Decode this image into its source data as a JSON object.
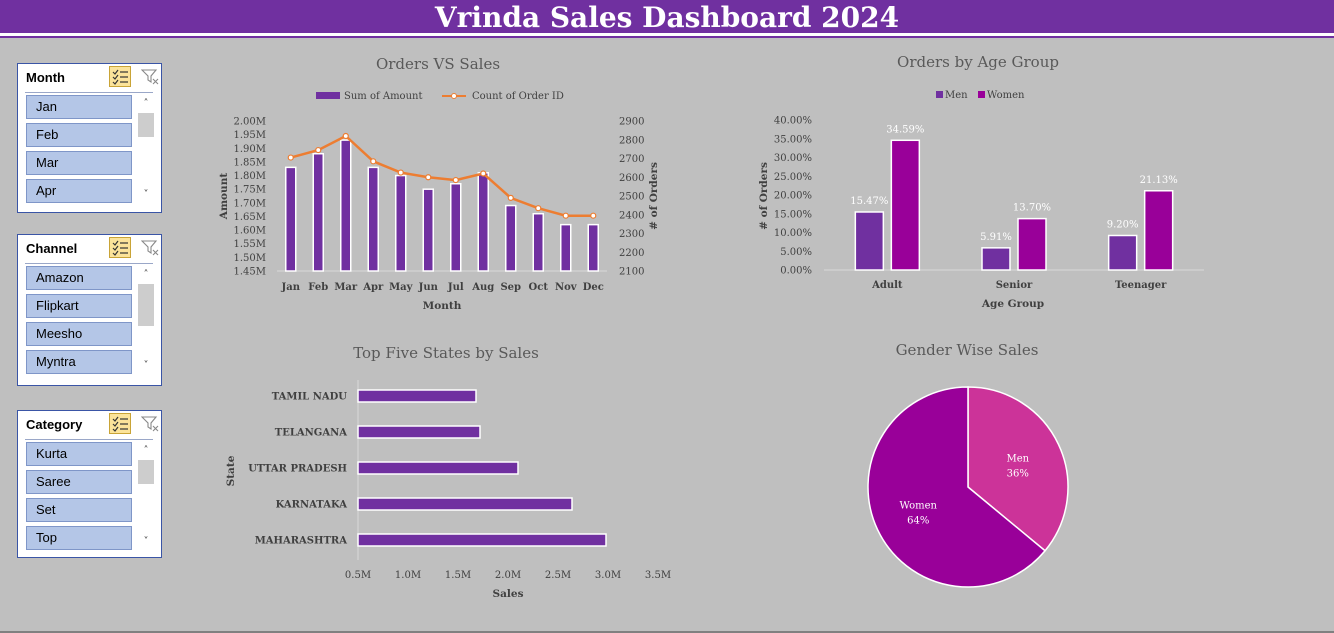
{
  "title": "Vrinda Sales Dashboard 2024",
  "slicers": [
    {
      "title": "Month",
      "items": [
        "Jan",
        "Feb",
        "Mar",
        "Apr"
      ]
    },
    {
      "title": "Channel",
      "items": [
        "Amazon",
        "Flipkart",
        "Meesho",
        "Myntra"
      ]
    },
    {
      "title": "Category",
      "items": [
        "Kurta",
        "Saree",
        "Set",
        "Top"
      ]
    }
  ],
  "chart_data": [
    {
      "type": "bar+line",
      "title": "Orders VS Sales",
      "xlabel": "Month",
      "ylabel": "Amount",
      "y2label": "# of Orders",
      "categories": [
        "Jan",
        "Feb",
        "Mar",
        "Apr",
        "May",
        "Jun",
        "Jul",
        "Aug",
        "Sep",
        "Oct",
        "Nov",
        "Dec"
      ],
      "series": [
        {
          "name": "Sum of Amount",
          "kind": "bar",
          "color": "#7030a0",
          "values": [
            1.83,
            1.88,
            1.93,
            1.83,
            1.8,
            1.75,
            1.77,
            1.81,
            1.69,
            1.66,
            1.62,
            1.62
          ]
        },
        {
          "name": "Count of Order ID",
          "kind": "line",
          "axis": "secondary",
          "color": "#ed7d31",
          "values": [
            2705,
            2745,
            2820,
            2685,
            2625,
            2600,
            2585,
            2620,
            2490,
            2435,
            2395,
            2395
          ]
        }
      ],
      "ylim": [
        1.45,
        2.0
      ],
      "yticks": [
        "1.45M",
        "1.50M",
        "1.55M",
        "1.60M",
        "1.65M",
        "1.70M",
        "1.75M",
        "1.80M",
        "1.85M",
        "1.90M",
        "1.95M",
        "2.00M"
      ],
      "y2lim": [
        2100,
        2900
      ],
      "y2ticks": [
        "2100",
        "2200",
        "2300",
        "2400",
        "2500",
        "2600",
        "2700",
        "2800",
        "2900"
      ],
      "legend": "top"
    },
    {
      "type": "bar",
      "title": "Orders by Age Group",
      "xlabel": "Age Group",
      "ylabel": "# of Orders",
      "categories": [
        "Adult",
        "Senior",
        "Teenager"
      ],
      "series": [
        {
          "name": "Men",
          "color": "#7030a0",
          "values": [
            15.47,
            5.91,
            9.2
          ],
          "labels": [
            "15.47%",
            "5.91%",
            "9.20%"
          ]
        },
        {
          "name": "Women",
          "color": "#990099",
          "values": [
            34.59,
            13.7,
            21.13
          ],
          "labels": [
            "34.59%",
            "13.70%",
            "21.13%"
          ]
        }
      ],
      "ylim": [
        0,
        40
      ],
      "yticks": [
        "0.00%",
        "5.00%",
        "10.00%",
        "15.00%",
        "20.00%",
        "25.00%",
        "30.00%",
        "35.00%",
        "40.00%"
      ],
      "legend": "top"
    },
    {
      "type": "bar",
      "orientation": "horizontal",
      "title": "Top Five States by Sales",
      "xlabel": "Sales",
      "ylabel": "State",
      "categories": [
        "TAMIL NADU",
        "TELANGANA",
        "UTTAR PRADESH",
        "KARNATAKA",
        "MAHARASHTRA"
      ],
      "values": [
        1.68,
        1.72,
        2.1,
        2.64,
        2.98
      ],
      "color": "#7030a0",
      "xlim": [
        0.5,
        3.5
      ],
      "xticks": [
        "0.5M",
        "1.0M",
        "1.5M",
        "2.0M",
        "2.5M",
        "3.0M",
        "3.5M"
      ]
    },
    {
      "type": "pie",
      "title": "Gender Wise Sales",
      "slices": [
        {
          "name": "Men",
          "value": 36,
          "label": "36%",
          "color": "#cc3399"
        },
        {
          "name": "Women",
          "value": 64,
          "label": "64%",
          "color": "#990099"
        }
      ]
    }
  ]
}
